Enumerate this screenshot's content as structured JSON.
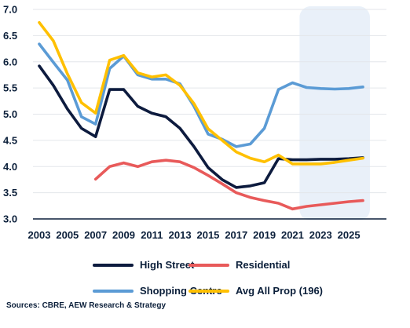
{
  "chart_data": {
    "type": "line",
    "title": "",
    "xlabel": "",
    "ylabel": "",
    "ylim": [
      3.0,
      7.0
    ],
    "y_ticks": [
      3.0,
      3.5,
      4.0,
      4.5,
      5.0,
      5.5,
      6.0,
      6.5,
      7.0
    ],
    "y_tick_labels": [
      "3.0",
      "3.5",
      "4.0",
      "4.5",
      "5.0",
      "5.5",
      "6.0",
      "6.5",
      "7.0"
    ],
    "xlim": [
      2003,
      2026
    ],
    "x_ticks": [
      2003,
      2005,
      2007,
      2009,
      2011,
      2013,
      2015,
      2017,
      2019,
      2021,
      2023,
      2025
    ],
    "x_tick_labels": [
      "2003",
      "2005",
      "2007",
      "2009",
      "2011",
      "2013",
      "2015",
      "2017",
      "2019",
      "2021",
      "2023",
      "2025"
    ],
    "grid": "horizontal",
    "legend_position": "bottom",
    "forecast_shaded_region": [
      2021.5,
      2026.5
    ],
    "series": [
      {
        "name": "High Street",
        "color": "#0d1b3e",
        "x": [
          2003,
          2004,
          2005,
          2006,
          2007,
          2008,
          2009,
          2010,
          2011,
          2012,
          2013,
          2014,
          2015,
          2016,
          2017,
          2018,
          2019,
          2020,
          2021,
          2022,
          2023,
          2024,
          2025,
          2026
        ],
        "values": [
          5.92,
          5.55,
          5.1,
          4.73,
          4.57,
          5.47,
          5.47,
          5.15,
          5.02,
          4.95,
          4.73,
          4.38,
          3.98,
          3.75,
          3.6,
          3.63,
          3.69,
          4.15,
          4.13,
          4.13,
          4.14,
          4.14,
          4.15,
          4.17
        ]
      },
      {
        "name": "Residential",
        "color": "#e85a5a",
        "x": [
          2007,
          2008,
          2009,
          2010,
          2011,
          2012,
          2013,
          2014,
          2015,
          2016,
          2017,
          2018,
          2019,
          2020,
          2021,
          2022,
          2023,
          2024,
          2025,
          2026
        ],
        "values": [
          3.76,
          4.0,
          4.07,
          4.0,
          4.09,
          4.12,
          4.09,
          3.98,
          3.83,
          3.67,
          3.5,
          3.41,
          3.35,
          3.3,
          3.19,
          3.24,
          3.27,
          3.3,
          3.33,
          3.35
        ]
      },
      {
        "name": "Shopping Centre",
        "color": "#5b9bd5",
        "x": [
          2003,
          2004,
          2005,
          2006,
          2007,
          2008,
          2009,
          2010,
          2011,
          2012,
          2013,
          2014,
          2015,
          2016,
          2017,
          2018,
          2019,
          2020,
          2021,
          2022,
          2023,
          2024,
          2025,
          2026
        ],
        "values": [
          6.34,
          5.99,
          5.65,
          4.95,
          4.81,
          5.87,
          6.11,
          5.75,
          5.67,
          5.67,
          5.58,
          5.15,
          4.62,
          4.52,
          4.38,
          4.43,
          4.73,
          5.47,
          5.6,
          5.51,
          5.49,
          5.48,
          5.49,
          5.52
        ]
      },
      {
        "name": "Avg All Prop (196)",
        "color": "#ffc000",
        "x": [
          2003,
          2004,
          2005,
          2006,
          2007,
          2008,
          2009,
          2010,
          2011,
          2012,
          2013,
          2014,
          2015,
          2016,
          2017,
          2018,
          2019,
          2020,
          2021,
          2022,
          2023,
          2024,
          2025,
          2026
        ],
        "values": [
          6.75,
          6.4,
          5.77,
          5.22,
          5.02,
          6.03,
          6.12,
          5.79,
          5.71,
          5.75,
          5.55,
          5.2,
          4.72,
          4.5,
          4.28,
          4.16,
          4.09,
          4.22,
          4.05,
          4.05,
          4.05,
          4.08,
          4.12,
          4.16
        ]
      }
    ]
  },
  "legend": {
    "items": [
      {
        "label": "High Street",
        "color": "#0d1b3e"
      },
      {
        "label": "Residential",
        "color": "#e85a5a"
      },
      {
        "label": "Shopping Centre",
        "color": "#5b9bd5"
      },
      {
        "label": "Avg All Prop (196)",
        "color": "#ffc000"
      }
    ]
  },
  "source_note": "Sources: CBRE, AEW Research & Strategy"
}
